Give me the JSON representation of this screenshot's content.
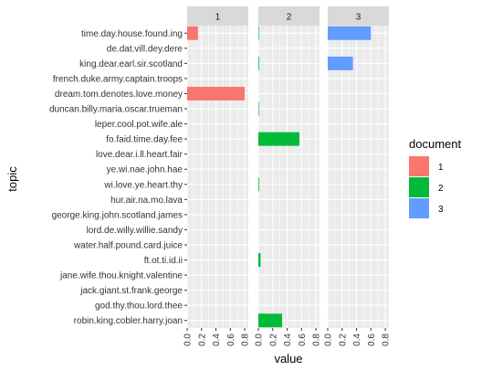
{
  "chart_data": {
    "type": "bar",
    "orientation": "horizontal",
    "facet_by": "document",
    "xlabel": "value",
    "ylabel": "topic",
    "xlim": [
      0,
      0.85
    ],
    "x_ticks": [
      0.0,
      0.2,
      0.4,
      0.6,
      0.8
    ],
    "x_tick_labels": [
      "0.0",
      "0.2",
      "0.4",
      "0.6",
      "0.8"
    ],
    "grid": true,
    "legend": {
      "title": "document",
      "placement": "right",
      "entries": [
        {
          "label": "1",
          "color": "#F8766D"
        },
        {
          "label": "2",
          "color": "#00BA38"
        },
        {
          "label": "3",
          "color": "#619CFF"
        }
      ]
    },
    "topics": [
      "time.day.house.found.ing",
      "de.dat.vill.dey.dere",
      "king.dear.earl.sir.scotland",
      "french.duke.army.captain.troops",
      "dream.tom.denotes.love.money",
      "duncan.billy.maria.oscar.trueman",
      "leper.cool.pot.wife.ale",
      "fo.faid.time.day.fee",
      "love.dear.i.ll.heart.fair",
      "ye.wi.nae.john.hae",
      "wi.love.ye.heart.thy",
      "hur.air.na.mo.lava",
      "george.king.john.scotland.james",
      "lord.de.willy.willie.sandy",
      "water.half.pound.card.juice",
      "ft.ot.ti.id.ii",
      "jane.wife.thou.knight.valentine",
      "jack.giant.st.frank.george",
      "god.thy.thou.lord.thee",
      "robin.king.cobler.harry.joan"
    ],
    "panels": [
      {
        "label": "1",
        "color": "#F8766D",
        "values": [
          0.15,
          0,
          0,
          0,
          0.8,
          0,
          0,
          0,
          0,
          0,
          0,
          0,
          0,
          0,
          0,
          0,
          0,
          0,
          0,
          0
        ]
      },
      {
        "label": "2",
        "color": "#00BA38",
        "values": [
          0.005,
          0,
          0.01,
          0,
          0,
          0.005,
          0,
          0.57,
          0,
          0,
          0.01,
          0,
          0,
          0,
          0,
          0.03,
          0,
          0,
          0,
          0.33
        ]
      },
      {
        "label": "3",
        "color": "#619CFF",
        "values": [
          0.6,
          0,
          0.35,
          0,
          0,
          0,
          0,
          0,
          0,
          0,
          0,
          0,
          0,
          0,
          0,
          0,
          0,
          0,
          0,
          0
        ]
      }
    ]
  }
}
